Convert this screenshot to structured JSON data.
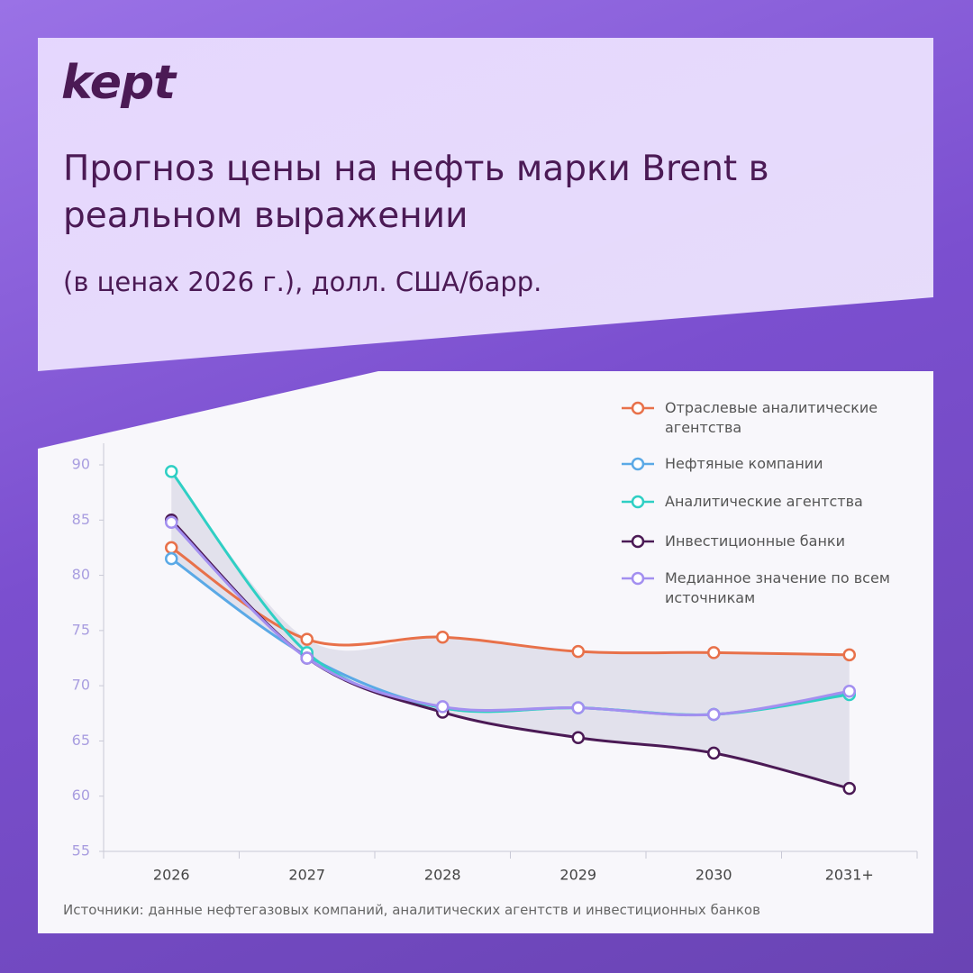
{
  "logo": "kept",
  "chart_data": {
    "type": "line",
    "title": "Прогноз цены на нефть марки Brent в реальном выражении",
    "subtitle": "(в ценах 2026 г.), долл. США/барр.",
    "categories": [
      "2026",
      "2027",
      "2028",
      "2029",
      "2030",
      "2031+"
    ],
    "series": [
      {
        "name": "Отраслевые аналитические агентства",
        "color": "#e8714a",
        "values": [
          82.5,
          74.2,
          74.4,
          73.1,
          73.0,
          72.8
        ]
      },
      {
        "name": "Нефтяные компании",
        "color": "#5aa9e6",
        "values": [
          81.5,
          72.7,
          68.0,
          68.0,
          67.4,
          69.4
        ]
      },
      {
        "name": "Аналитические агентства",
        "color": "#2fcfc4",
        "values": [
          89.4,
          73.0,
          68.0,
          68.0,
          67.4,
          69.2
        ]
      },
      {
        "name": "Инвестиционные банки",
        "color": "#4b1a55",
        "values": [
          85.0,
          72.5,
          67.6,
          65.3,
          63.9,
          60.7
        ]
      },
      {
        "name": "Медианное значение по всем источникам",
        "color": "#a38ff0",
        "values": [
          84.8,
          72.5,
          68.1,
          68.0,
          67.4,
          69.5
        ]
      }
    ],
    "ylim": [
      55,
      90
    ],
    "yticks": [
      55,
      60,
      65,
      70,
      75,
      80,
      85,
      90
    ],
    "source": "Источники: данные нефтегазовых компаний, аналитических агентств и инвестиционных банков"
  }
}
